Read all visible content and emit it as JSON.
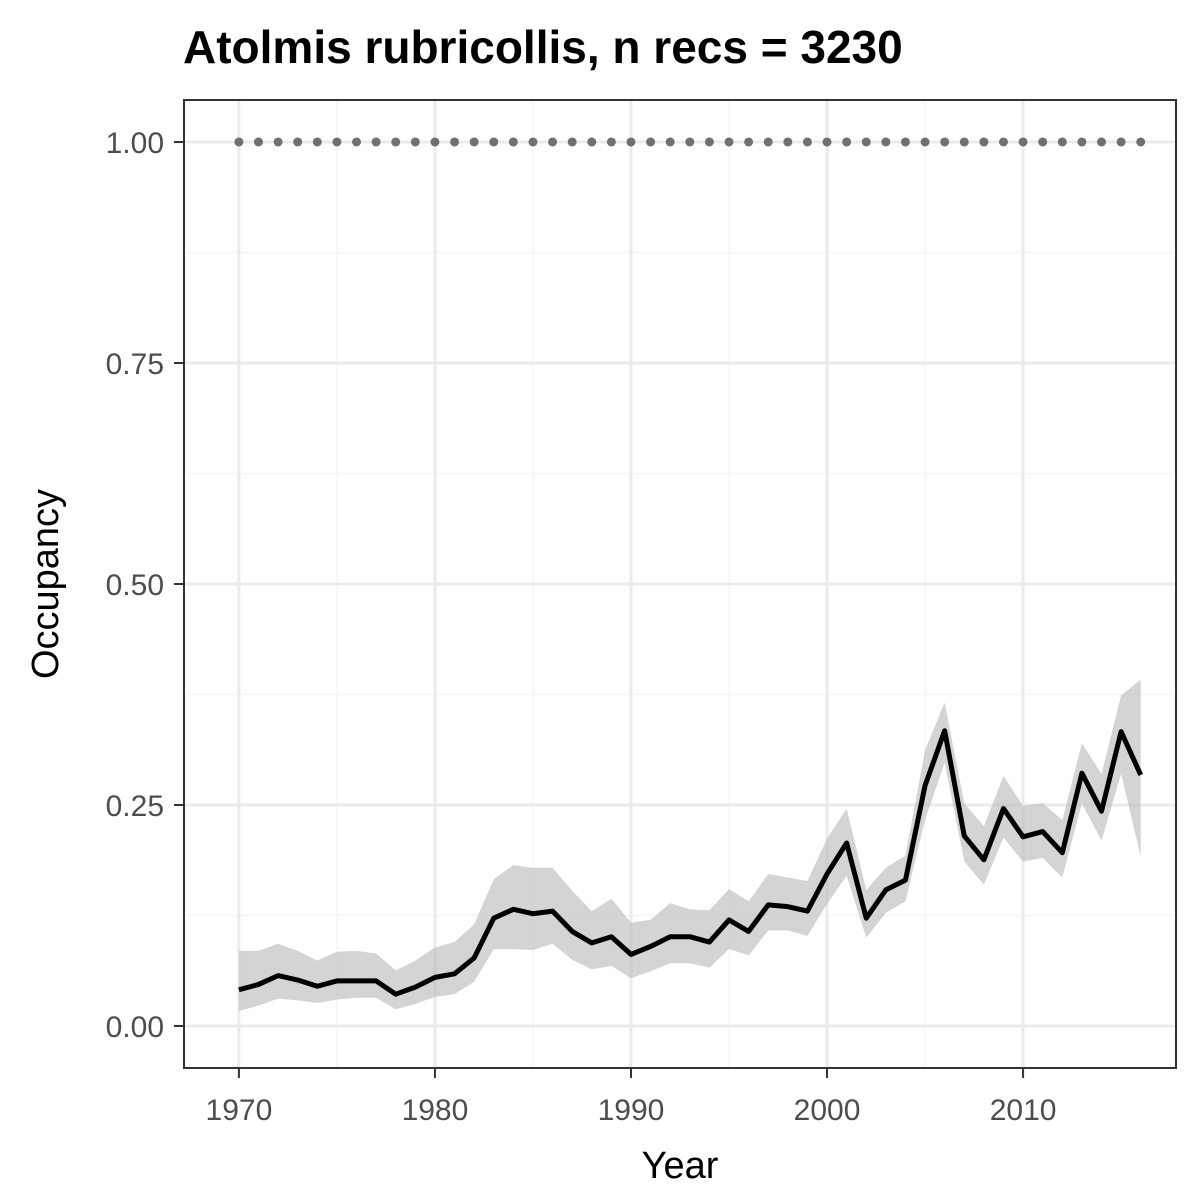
{
  "chart_data": {
    "type": "line",
    "title": "Atolmis rubricollis, n recs = 3230",
    "xlabel": "Year",
    "ylabel": "Occupancy",
    "xlim": [
      1967.2,
      2017.8
    ],
    "ylim": [
      -0.0475,
      1.0475
    ],
    "x_ticks": [
      1970,
      1980,
      1990,
      2000,
      2010
    ],
    "x_tick_labels": [
      "1970",
      "1980",
      "1990",
      "2000",
      "2010"
    ],
    "y_ticks": [
      0,
      0.25,
      0.5,
      0.75,
      1
    ],
    "y_tick_labels": [
      "0.00",
      "0.25",
      "0.50",
      "0.75",
      "1.00"
    ],
    "grid": true,
    "colors": {
      "line": "#000000",
      "ribbon": "#bdbdbd",
      "reference": "#707070",
      "grid_major": "#ebebeb",
      "grid_minor": "#f5f5f5",
      "panel_border": "#333333"
    },
    "series": [
      {
        "x": [
          1970,
          1971,
          1972,
          1973,
          1974,
          1975,
          1976,
          1977,
          1978,
          1979,
          1980,
          1981,
          1982,
          1983,
          1984,
          1985,
          1986,
          1987,
          1988,
          1989,
          1990,
          1991,
          1992,
          1993,
          1994,
          1995,
          1996,
          1997,
          1998,
          1999,
          2000,
          2001,
          2002,
          2003,
          2004,
          2005,
          2006,
          2007,
          2008,
          2009,
          2010,
          2011,
          2012,
          2013,
          2014,
          2015,
          2016
        ],
        "y": [
          0.041,
          0.047,
          0.057,
          0.052,
          0.045,
          0.051,
          0.051,
          0.051,
          0.036,
          0.044,
          0.055,
          0.059,
          0.077,
          0.122,
          0.132,
          0.127,
          0.13,
          0.107,
          0.094,
          0.101,
          0.081,
          0.09,
          0.101,
          0.101,
          0.095,
          0.12,
          0.107,
          0.137,
          0.135,
          0.13,
          0.172,
          0.207,
          0.122,
          0.154,
          0.165,
          0.272,
          0.334,
          0.215,
          0.188,
          0.246,
          0.214,
          0.22,
          0.196,
          0.286,
          0.243,
          0.333,
          0.284
        ],
        "lower": [
          0.017,
          0.023,
          0.031,
          0.029,
          0.026,
          0.03,
          0.032,
          0.032,
          0.019,
          0.025,
          0.033,
          0.036,
          0.05,
          0.087,
          0.087,
          0.086,
          0.093,
          0.075,
          0.064,
          0.068,
          0.054,
          0.062,
          0.071,
          0.071,
          0.066,
          0.087,
          0.08,
          0.108,
          0.108,
          0.102,
          0.138,
          0.17,
          0.1,
          0.128,
          0.141,
          0.233,
          0.298,
          0.186,
          0.16,
          0.213,
          0.186,
          0.19,
          0.168,
          0.252,
          0.21,
          0.285,
          0.192
        ],
        "upper": [
          0.085,
          0.085,
          0.093,
          0.085,
          0.074,
          0.084,
          0.085,
          0.082,
          0.063,
          0.074,
          0.089,
          0.095,
          0.115,
          0.166,
          0.182,
          0.179,
          0.179,
          0.153,
          0.13,
          0.144,
          0.117,
          0.12,
          0.139,
          0.132,
          0.131,
          0.155,
          0.141,
          0.172,
          0.168,
          0.164,
          0.212,
          0.246,
          0.154,
          0.179,
          0.193,
          0.312,
          0.366,
          0.252,
          0.226,
          0.283,
          0.249,
          0.252,
          0.233,
          0.32,
          0.285,
          0.374,
          0.392
        ]
      },
      {
        "x": [
          1970,
          1971,
          1972,
          1973,
          1974,
          1975,
          1976,
          1977,
          1978,
          1979,
          1980,
          1981,
          1982,
          1983,
          1984,
          1985,
          1986,
          1987,
          1988,
          1989,
          1990,
          1991,
          1992,
          1993,
          1994,
          1995,
          1996,
          1997,
          1998,
          1999,
          2000,
          2001,
          2002,
          2003,
          2004,
          2005,
          2006,
          2007,
          2008,
          2009,
          2010,
          2011,
          2012,
          2013,
          2014,
          2015,
          2016
        ],
        "y": [
          1,
          1,
          1,
          1,
          1,
          1,
          1,
          1,
          1,
          1,
          1,
          1,
          1,
          1,
          1,
          1,
          1,
          1,
          1,
          1,
          1,
          1,
          1,
          1,
          1,
          1,
          1,
          1,
          1,
          1,
          1,
          1,
          1,
          1,
          1,
          1,
          1,
          1,
          1,
          1,
          1,
          1,
          1,
          1,
          1,
          1,
          1
        ]
      }
    ]
  }
}
